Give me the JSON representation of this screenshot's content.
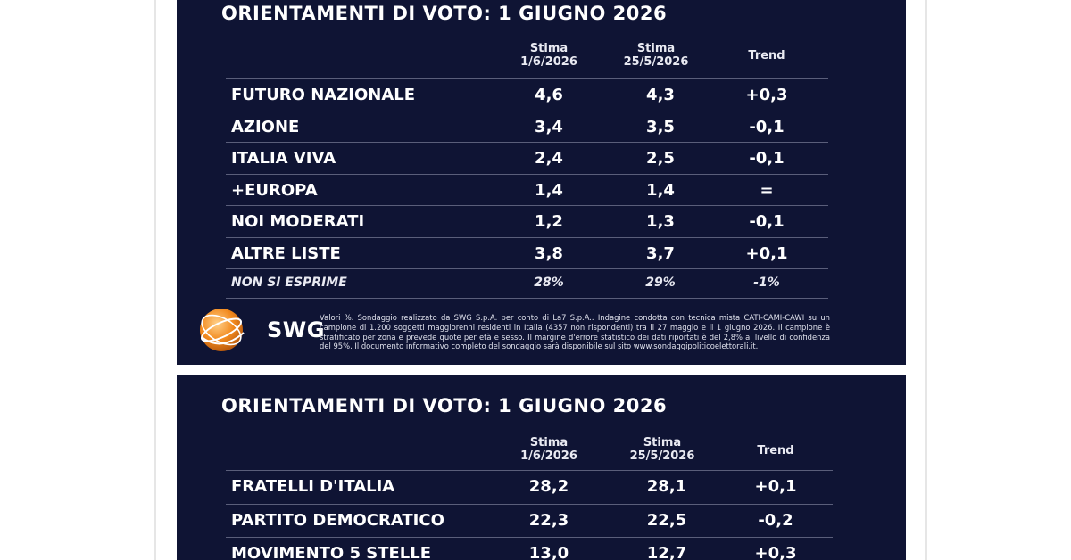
{
  "chart_data": [
    {
      "type": "table",
      "title": "ORIENTAMENTI DI VOTO: 1 GIUGNO 2026",
      "columns": [
        {
          "line1": "",
          "line2": ""
        },
        {
          "line1": "Stima",
          "line2": "1/6/2026"
        },
        {
          "line1": "Stima",
          "line2": "25/5/2026"
        },
        {
          "line1": "Trend",
          "line2": ""
        }
      ],
      "rows": [
        {
          "party": "FUTURO NAZIONALE",
          "current": "4,6",
          "previous": "4,3",
          "trend": "+0,3"
        },
        {
          "party": "AZIONE",
          "current": "3,4",
          "previous": "3,5",
          "trend": "-0,1"
        },
        {
          "party": "ITALIA VIVA",
          "current": "2,4",
          "previous": "2,5",
          "trend": "-0,1"
        },
        {
          "party": "+EUROPA",
          "current": "1,4",
          "previous": "1,4",
          "trend": "="
        },
        {
          "party": "NOI MODERATI",
          "current": "1,2",
          "previous": "1,3",
          "trend": "-0,1"
        },
        {
          "party": "ALTRE LISTE",
          "current": "3,8",
          "previous": "3,7",
          "trend": "+0,1"
        },
        {
          "party": "NON SI ESPRIME",
          "current": "28%",
          "previous": "29%",
          "trend": "-1%"
        }
      ],
      "logo_text": "SWG",
      "footnote": "Valori %. Sondaggio realizzato da SWG S.p.A. per conto di La7 S.p.A.. Indagine condotta con tecnica mista CATI-CAMI-CAWI su un campione di 1.200 soggetti maggiorenni residenti in Italia (4357 non rispondenti) tra il 27 maggio e il 1 giugno 2026. Il campione è stratificato per zona e prevede quote per età e sesso. Il margine d'errore statistico dei dati riportati è del 2,8% al livello di confidenza del 95%. Il documento informativo completo del sondaggio sarà disponibile sul sito www.sondaggipoliticoelettorali.it."
    },
    {
      "type": "table",
      "title": "ORIENTAMENTI DI VOTO: 1 GIUGNO 2026",
      "columns": [
        {
          "line1": "",
          "line2": ""
        },
        {
          "line1": "Stima",
          "line2": "1/6/2026"
        },
        {
          "line1": "Stima",
          "line2": "25/5/2026"
        },
        {
          "line1": "Trend",
          "line2": ""
        }
      ],
      "rows": [
        {
          "party": "FRATELLI D'ITALIA",
          "current": "28,2",
          "previous": "28,1",
          "trend": "+0,1"
        },
        {
          "party": "PARTITO DEMOCRATICO",
          "current": "22,3",
          "previous": "22,5",
          "trend": "-0,2"
        },
        {
          "party": "MOVIMENTO 5 STELLE",
          "current": "13,0",
          "previous": "12,7",
          "trend": "+0,3"
        }
      ]
    }
  ],
  "colors": {
    "panel_background": "#0f1434",
    "text": "#ffffff",
    "separator": "#5a5e7a",
    "logo_orange": "#f28a1e"
  }
}
